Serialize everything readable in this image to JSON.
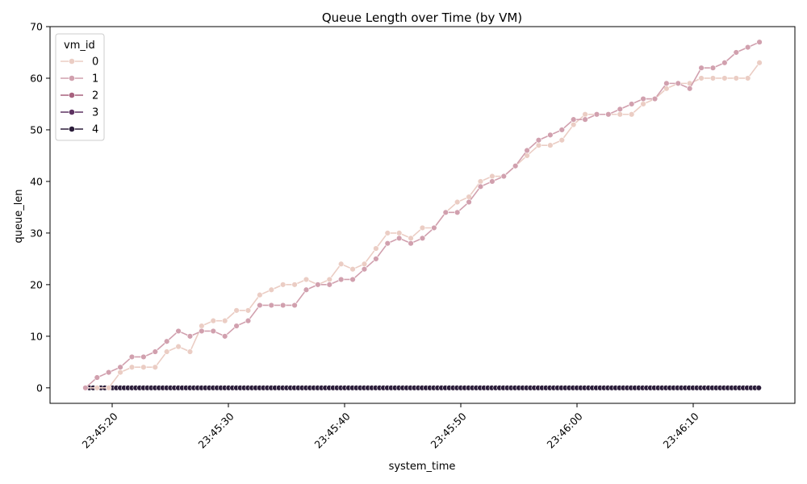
{
  "chart_data": {
    "type": "line",
    "title": "Queue Length over Time (by VM)",
    "xlabel": "system_time",
    "ylabel": "queue_len",
    "x_tick_labels": [
      "23:45:20",
      "23:45:30",
      "23:45:40",
      "23:45:50",
      "23:46:00",
      "23:46:10"
    ],
    "y_ticks": [
      0,
      10,
      20,
      30,
      40,
      50,
      60,
      70
    ],
    "ylim": [
      -3,
      70
    ],
    "legend": {
      "title": "vm_id",
      "position": "top-left"
    },
    "marker": "circle",
    "grid": false,
    "series": [
      {
        "name": "0",
        "color": "#ebcdc4",
        "points": [
          [
            "23:45:17.7",
            0
          ],
          [
            "23:45:18.7",
            0
          ],
          [
            "23:45:19.7",
            0
          ],
          [
            "23:45:20.7",
            3
          ],
          [
            "23:45:21.7",
            4
          ],
          [
            "23:45:22.7",
            4
          ],
          [
            "23:45:23.7",
            4
          ],
          [
            "23:45:24.7",
            7
          ],
          [
            "23:45:25.7",
            8
          ],
          [
            "23:45:26.7",
            7
          ],
          [
            "23:45:27.7",
            12
          ],
          [
            "23:45:28.7",
            13
          ],
          [
            "23:45:29.7",
            13
          ],
          [
            "23:45:30.7",
            15
          ],
          [
            "23:45:31.7",
            15
          ],
          [
            "23:45:32.7",
            18
          ],
          [
            "23:45:33.7",
            19
          ],
          [
            "23:45:34.7",
            20
          ],
          [
            "23:45:35.7",
            20
          ],
          [
            "23:45:36.7",
            21
          ],
          [
            "23:45:37.7",
            20
          ],
          [
            "23:45:38.7",
            21
          ],
          [
            "23:45:39.7",
            24
          ],
          [
            "23:45:40.7",
            23
          ],
          [
            "23:45:41.7",
            24
          ],
          [
            "23:45:42.7",
            27
          ],
          [
            "23:45:43.7",
            30
          ],
          [
            "23:45:44.7",
            30
          ],
          [
            "23:45:45.7",
            29
          ],
          [
            "23:45:46.7",
            31
          ],
          [
            "23:45:47.7",
            31
          ],
          [
            "23:45:48.7",
            34
          ],
          [
            "23:45:49.7",
            36
          ],
          [
            "23:45:50.7",
            37
          ],
          [
            "23:45:51.7",
            40
          ],
          [
            "23:45:52.7",
            41
          ],
          [
            "23:45:53.7",
            41
          ],
          [
            "23:45:54.7",
            43
          ],
          [
            "23:45:55.7",
            45
          ],
          [
            "23:45:56.7",
            47
          ],
          [
            "23:45:57.7",
            47
          ],
          [
            "23:45:58.7",
            48
          ],
          [
            "23:45:59.7",
            51
          ],
          [
            "23:46:00.7",
            53
          ],
          [
            "23:46:01.7",
            53
          ],
          [
            "23:46:02.7",
            53
          ],
          [
            "23:46:03.7",
            53
          ],
          [
            "23:46:04.7",
            53
          ],
          [
            "23:46:05.7",
            55
          ],
          [
            "23:46:06.7",
            56
          ],
          [
            "23:46:07.7",
            58
          ],
          [
            "23:46:08.7",
            59
          ],
          [
            "23:46:09.7",
            59
          ],
          [
            "23:46:10.7",
            60
          ],
          [
            "23:46:11.7",
            60
          ],
          [
            "23:46:12.7",
            60
          ],
          [
            "23:46:13.7",
            60
          ],
          [
            "23:46:14.7",
            60
          ],
          [
            "23:46:15.7",
            63
          ]
        ]
      },
      {
        "name": "1",
        "color": "#d1a0ae",
        "points": [
          [
            "23:45:17.7",
            0
          ],
          [
            "23:45:18.7",
            2
          ],
          [
            "23:45:19.7",
            3
          ],
          [
            "23:45:20.7",
            4
          ],
          [
            "23:45:21.7",
            6
          ],
          [
            "23:45:22.7",
            6
          ],
          [
            "23:45:23.7",
            7
          ],
          [
            "23:45:24.7",
            9
          ],
          [
            "23:45:25.7",
            11
          ],
          [
            "23:45:26.7",
            10
          ],
          [
            "23:45:27.7",
            11
          ],
          [
            "23:45:28.7",
            11
          ],
          [
            "23:45:29.7",
            10
          ],
          [
            "23:45:30.7",
            12
          ],
          [
            "23:45:31.7",
            13
          ],
          [
            "23:45:32.7",
            16
          ],
          [
            "23:45:33.7",
            16
          ],
          [
            "23:45:34.7",
            16
          ],
          [
            "23:45:35.7",
            16
          ],
          [
            "23:45:36.7",
            19
          ],
          [
            "23:45:37.7",
            20
          ],
          [
            "23:45:38.7",
            20
          ],
          [
            "23:45:39.7",
            21
          ],
          [
            "23:45:40.7",
            21
          ],
          [
            "23:45:41.7",
            23
          ],
          [
            "23:45:42.7",
            25
          ],
          [
            "23:45:43.7",
            28
          ],
          [
            "23:45:44.7",
            29
          ],
          [
            "23:45:45.7",
            28
          ],
          [
            "23:45:46.7",
            29
          ],
          [
            "23:45:47.7",
            31
          ],
          [
            "23:45:48.7",
            34
          ],
          [
            "23:45:49.7",
            34
          ],
          [
            "23:45:50.7",
            36
          ],
          [
            "23:45:51.7",
            39
          ],
          [
            "23:45:52.7",
            40
          ],
          [
            "23:45:53.7",
            41
          ],
          [
            "23:45:54.7",
            43
          ],
          [
            "23:45:55.7",
            46
          ],
          [
            "23:45:56.7",
            48
          ],
          [
            "23:45:57.7",
            49
          ],
          [
            "23:45:58.7",
            50
          ],
          [
            "23:45:59.7",
            52
          ],
          [
            "23:46:00.7",
            52
          ],
          [
            "23:46:01.7",
            53
          ],
          [
            "23:46:02.7",
            53
          ],
          [
            "23:46:03.7",
            54
          ],
          [
            "23:46:04.7",
            55
          ],
          [
            "23:46:05.7",
            56
          ],
          [
            "23:46:06.7",
            56
          ],
          [
            "23:46:07.7",
            59
          ],
          [
            "23:46:08.7",
            59
          ],
          [
            "23:46:09.7",
            58
          ],
          [
            "23:46:10.7",
            62
          ],
          [
            "23:46:11.7",
            62
          ],
          [
            "23:46:12.7",
            63
          ],
          [
            "23:46:13.7",
            65
          ],
          [
            "23:46:14.7",
            66
          ],
          [
            "23:46:15.7",
            67
          ]
        ]
      },
      {
        "name": "2",
        "color": "#a8627f",
        "constant_value": 0,
        "points": []
      },
      {
        "name": "3",
        "color": "#5e3362",
        "constant_value": 0,
        "points": []
      },
      {
        "name": "4",
        "color": "#2b1d3a",
        "constant_value": 0,
        "points": []
      }
    ],
    "dense_series_x_range": [
      "23:45:17.7",
      "23:46:15.7"
    ],
    "dense_series_sample_seconds": 0.333
  }
}
